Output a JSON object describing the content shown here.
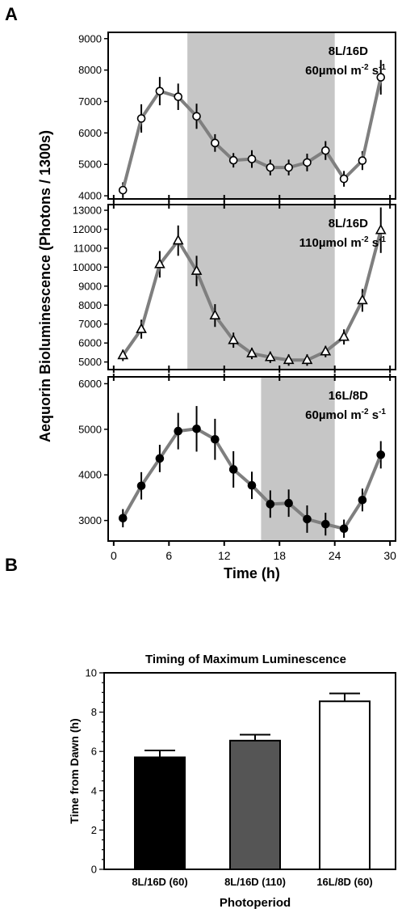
{
  "panel_a_letter": "A",
  "panel_b_letter": "B",
  "chart_data": [
    {
      "type": "line",
      "panel": "A-top",
      "dark_period": [
        8,
        24
      ],
      "annotation": {
        "line1": "8L/16D",
        "line2_prefix": "60µmol m",
        "sup1": "-2",
        "mid": " s",
        "sup2": "-1"
      },
      "marker": "open-circle",
      "ylim": [
        3900,
        9200
      ],
      "yticks": [
        4000,
        5000,
        6000,
        7000,
        8000,
        9000
      ],
      "xlim": [
        -0.6,
        30.6
      ],
      "x": [
        1,
        3,
        5,
        7,
        9,
        11,
        13,
        15,
        17,
        19,
        21,
        23,
        25,
        27,
        29
      ],
      "y": [
        4180,
        6460,
        7330,
        7150,
        6530,
        5680,
        5130,
        5170,
        4900,
        4900,
        5060,
        5440,
        4540,
        5120,
        7770
      ],
      "err": [
        250,
        450,
        450,
        420,
        400,
        280,
        230,
        280,
        250,
        250,
        280,
        300,
        250,
        300,
        550
      ],
      "line_color": "#7f7f7f",
      "shade_color": "#c6c6c6"
    },
    {
      "type": "line",
      "panel": "A-middle",
      "dark_period": [
        8,
        24
      ],
      "annotation": {
        "line1": "8L/16D",
        "line2_prefix": "110µmol m",
        "sup1": "-2",
        "mid": " s",
        "sup2": "-1"
      },
      "marker": "open-triangle",
      "ylim": [
        4600,
        13300
      ],
      "yticks": [
        5000,
        6000,
        7000,
        8000,
        9000,
        10000,
        11000,
        12000,
        13000
      ],
      "xlim": [
        -0.6,
        30.6
      ],
      "x": [
        1,
        3,
        5,
        7,
        9,
        11,
        13,
        15,
        17,
        19,
        21,
        23,
        25,
        27,
        29
      ],
      "y": [
        5350,
        6730,
        10150,
        11400,
        9800,
        7450,
        6150,
        5450,
        5250,
        5100,
        5100,
        5550,
        6320,
        8250,
        11950
      ],
      "err": [
        300,
        500,
        700,
        800,
        800,
        600,
        400,
        300,
        300,
        300,
        300,
        300,
        400,
        600,
        1200
      ],
      "line_color": "#7f7f7f",
      "shade_color": "#c6c6c6"
    },
    {
      "type": "line",
      "panel": "A-bottom",
      "dark_period": [
        16,
        24
      ],
      "annotation": {
        "line1": "16L/8D",
        "line2_prefix": "60µmol m",
        "sup1": "-2",
        "mid": " s",
        "sup2": "-1"
      },
      "marker": "filled-circle",
      "ylim": [
        2550,
        6150
      ],
      "yticks": [
        3000,
        4000,
        5000,
        6000
      ],
      "xlim": [
        -0.6,
        30.6
      ],
      "xticks": [
        0,
        6,
        12,
        18,
        24,
        30
      ],
      "xlabel": "Time (h)",
      "x": [
        1,
        3,
        5,
        7,
        9,
        11,
        13,
        15,
        17,
        19,
        21,
        23,
        25,
        27,
        29
      ],
      "y": [
        3050,
        3760,
        4360,
        4960,
        5010,
        4780,
        4120,
        3770,
        3360,
        3380,
        3030,
        2920,
        2820,
        3450,
        4440
      ],
      "err": [
        200,
        300,
        300,
        400,
        500,
        450,
        400,
        300,
        300,
        300,
        300,
        250,
        200,
        250,
        300
      ],
      "line_color": "#7f7f7f",
      "shade_color": "#c6c6c6"
    },
    {
      "type": "bar",
      "panel": "B",
      "title": "Timing of Maximum Luminescence",
      "xlabel": "Photoperiod",
      "ylabel": "Time from Dawn (h)",
      "ylim": [
        0,
        10
      ],
      "yticks": [
        0,
        2,
        4,
        6,
        8,
        10
      ],
      "categories": [
        "8L/16D (60)",
        "8L/16D (110)",
        "16L/8D (60)"
      ],
      "values": [
        5.7,
        6.55,
        8.55
      ],
      "err": [
        0.35,
        0.3,
        0.4
      ],
      "colors": [
        "#000000",
        "#555555",
        "#ffffff"
      ]
    }
  ],
  "shared_ylabel": "Aequorin Bioluminescence (Photons / 1300s)"
}
